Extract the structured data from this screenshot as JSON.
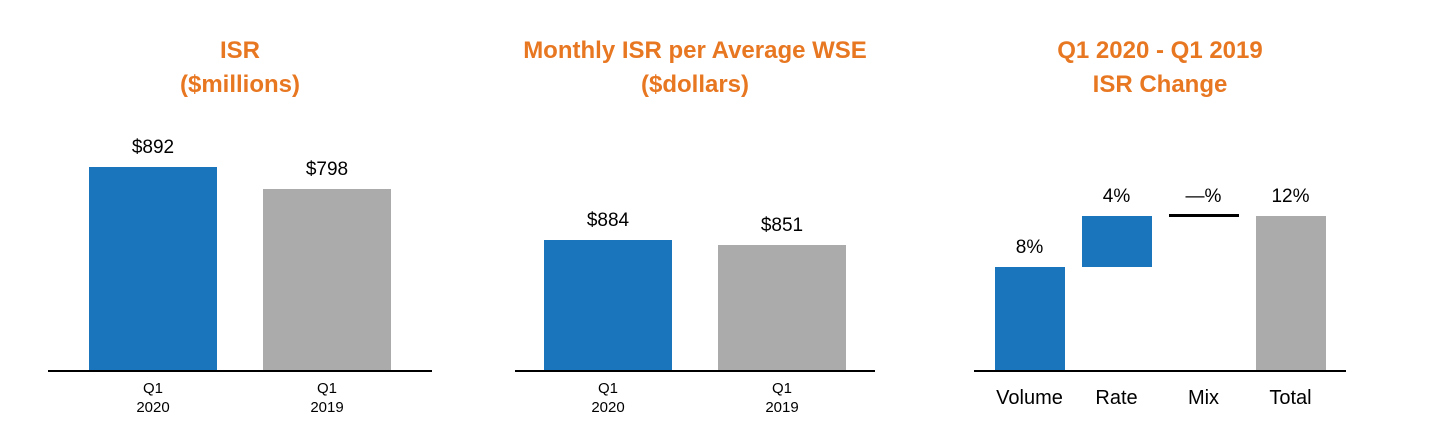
{
  "page": {
    "background": "#ffffff"
  },
  "colors": {
    "title": "#E87722",
    "blue": "#1B75BC",
    "gray": "#ABABAB",
    "axis": "#000000"
  },
  "chart_data": [
    {
      "type": "bar",
      "title": "ISR",
      "subtitle": "($millions)",
      "categories": [
        [
          "Q1",
          "2020"
        ],
        [
          "Q1",
          "2019"
        ]
      ],
      "values": [
        892,
        798
      ],
      "value_labels": [
        "$892",
        "$798"
      ],
      "bar_colors": [
        "blue",
        "gray"
      ],
      "xlabel": "",
      "ylabel": "",
      "ylim": [
        0,
        1100
      ],
      "grid": false,
      "legend": false
    },
    {
      "type": "bar",
      "title": "Monthly ISR per Average WSE",
      "subtitle": "($dollars)",
      "categories": [
        [
          "Q1",
          "2020"
        ],
        [
          "Q1",
          "2019"
        ]
      ],
      "values": [
        884,
        851
      ],
      "value_labels": [
        "$884",
        "$851"
      ],
      "bar_colors": [
        "blue",
        "gray"
      ],
      "xlabel": "",
      "ylabel": "",
      "ylim": [
        0,
        1700
      ],
      "grid": false,
      "legend": false
    },
    {
      "type": "waterfall",
      "title": "Q1 2020 - Q1 2019",
      "subtitle": "ISR Change",
      "categories": [
        [
          "Volume"
        ],
        [
          "Rate"
        ],
        [
          "Mix"
        ],
        [
          "Total"
        ]
      ],
      "values": [
        8,
        4,
        0,
        12
      ],
      "value_labels": [
        "8%",
        "4%",
        "—%",
        "12%"
      ],
      "unit": "%",
      "steps": [
        {
          "label": "Volume",
          "start": 0,
          "end": 8,
          "color": "blue",
          "style": "bar"
        },
        {
          "label": "Rate",
          "start": 8,
          "end": 12,
          "color": "blue",
          "style": "bar"
        },
        {
          "label": "Mix",
          "start": 12,
          "end": 12,
          "color": "axis",
          "style": "line"
        },
        {
          "label": "Total",
          "start": 0,
          "end": 12,
          "color": "gray",
          "style": "bar"
        }
      ],
      "xlabel": "",
      "ylabel": "",
      "ylim": [
        0,
        19.5
      ],
      "grid": false,
      "legend": false
    }
  ]
}
